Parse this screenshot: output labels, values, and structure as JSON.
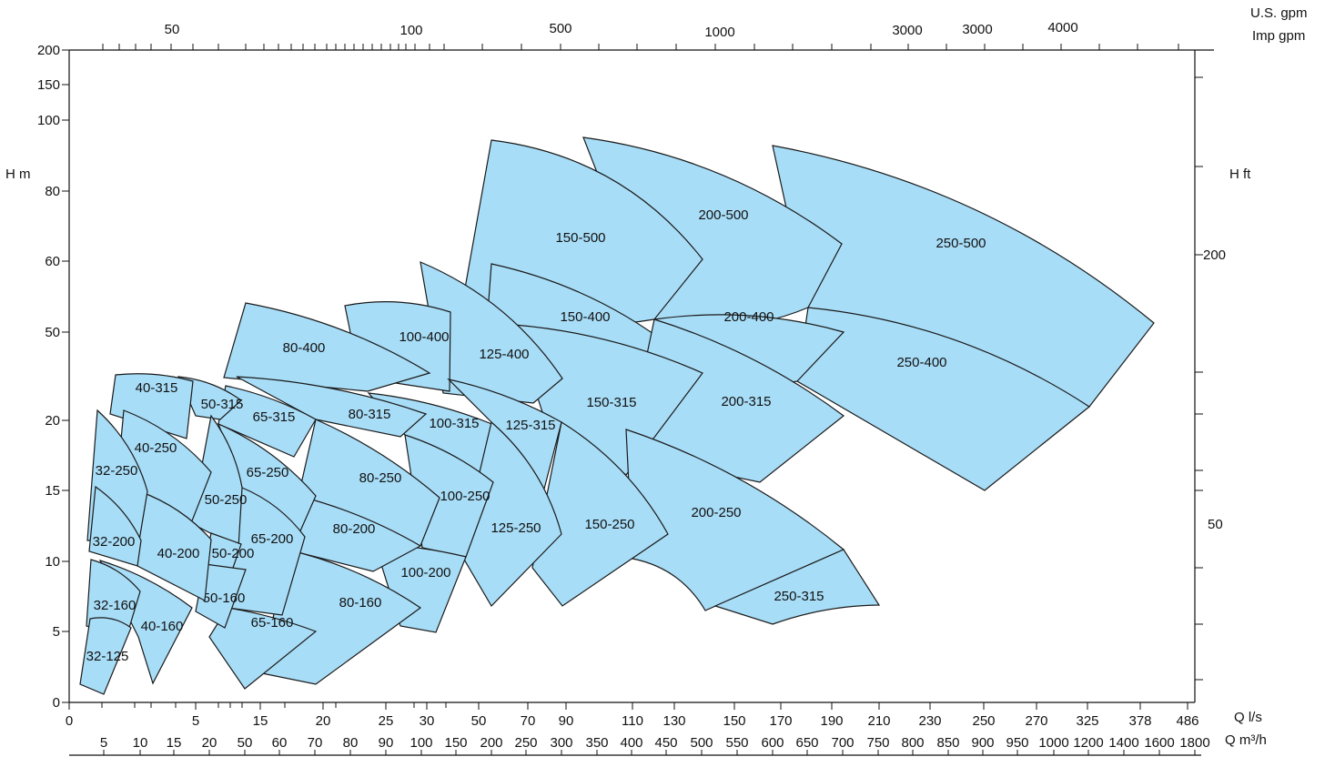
{
  "chart_data": {
    "type": "area",
    "axes": {
      "left_label": "H  m",
      "right_label": "H  ft",
      "top_label_1": "U.S.  gpm",
      "top_label_2": "Imp  gpm",
      "bottom_label_1": "Q l/s",
      "bottom_label_2": "Q m³/h",
      "left_ticks": [
        "200",
        "150",
        "100",
        "80",
        "60",
        "50",
        "20",
        "15",
        "10",
        "5",
        "0"
      ],
      "right_ticks": [
        "200",
        "50"
      ],
      "top_ticks": [
        "50",
        "100",
        "500",
        "1000",
        "3000",
        "3000",
        "4000"
      ],
      "bottom_ls_ticks": [
        "0",
        "5",
        "15",
        "20",
        "25",
        "30",
        "50",
        "70",
        "90",
        "110",
        "130",
        "150",
        "170",
        "190",
        "210",
        "230",
        "250",
        "270",
        "325",
        "378",
        "486"
      ],
      "bottom_m3h_ticks": [
        "5",
        "10",
        "15",
        "20",
        "50",
        "60",
        "70",
        "80",
        "90",
        "100",
        "150",
        "200",
        "250",
        "300",
        "350",
        "400",
        "450",
        "500",
        "550",
        "600",
        "650",
        "700",
        "750",
        "800",
        "850",
        "900",
        "950",
        "1000",
        "1200",
        "1400",
        "1600",
        "1800"
      ]
    },
    "colors": {
      "zone_fill": "#a8ddf7",
      "zone_stroke": "#1a1a1a"
    },
    "zones": [
      "32-125",
      "32-160",
      "32-200",
      "32-250",
      "40-160",
      "40-200",
      "40-250",
      "40-315",
      "50-160",
      "50-200",
      "50-250",
      "50-315",
      "65-160",
      "65-200",
      "65-250",
      "65-315",
      "80-160",
      "80-200",
      "80-250",
      "80-315",
      "80-400",
      "100-200",
      "100-250",
      "100-315",
      "100-400",
      "125-250",
      "125-315",
      "125-400",
      "150-250",
      "150-315",
      "150-400",
      "150-500",
      "200-250",
      "200-315",
      "200-400",
      "200-500",
      "250-315",
      "250-400",
      "250-500"
    ]
  }
}
